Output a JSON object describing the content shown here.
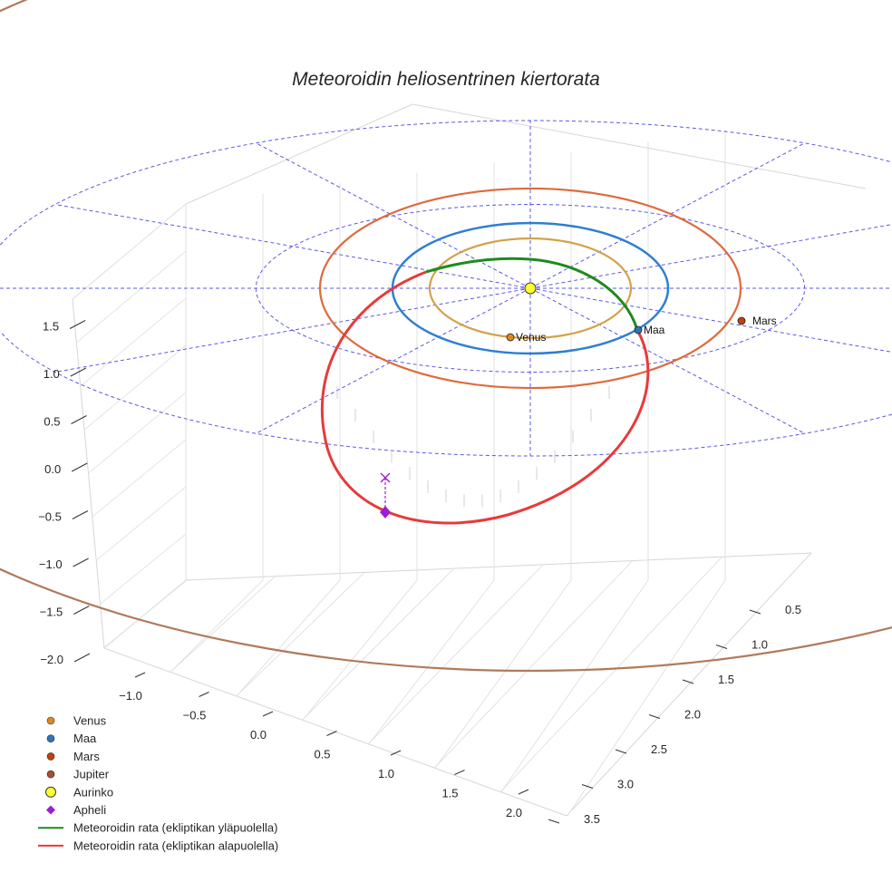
{
  "chart_data": {
    "type": "line",
    "projection": "3d",
    "title": "Meteoroidin heliosentrinen kiertorata",
    "axes": {
      "x": {
        "range": [
          -1.25,
          2.2
        ],
        "ticks": [
          "−1.0",
          "−0.5",
          "0.0",
          "0.5",
          "1.0",
          "1.5",
          "2.0"
        ]
      },
      "y": {
        "range": [
          0.3,
          3.6
        ],
        "ticks": [
          "0.5",
          "1.0",
          "1.5",
          "2.0",
          "2.5",
          "3.0",
          "3.5"
        ]
      },
      "z": {
        "range": [
          -2.0,
          1.7
        ],
        "ticks": [
          "−2.0",
          "−1.5",
          "−1.0",
          "−0.5",
          "0.0",
          "0.5",
          "1.0",
          "1.5"
        ]
      }
    },
    "ecliptic_reference_circles": [
      2,
      4
    ],
    "planets": [
      {
        "name": "Venus",
        "label": "Venus",
        "orbit_radius": 0.72,
        "color": "#d4a24c",
        "marker_color": "#d98a1f"
      },
      {
        "name": "Maa",
        "label": "Maa",
        "orbit_radius": 1.0,
        "color": "#2e7fd1",
        "marker_color": "#2e75b6"
      },
      {
        "name": "Mars",
        "label": "Mars",
        "orbit_radius": 1.52,
        "color": "#de6a3d",
        "marker_color": "#c2410c"
      },
      {
        "name": "Jupiter",
        "orbit_radius": 5.2,
        "color": "#b07a5a",
        "marker_color": "#a0522d"
      }
    ],
    "sun": {
      "name": "Aurinko",
      "color": "#ffff33"
    },
    "meteoroid_orbit": {
      "above_label": "Meteoroidin rata (ekliptikan yläpuolella)",
      "below_label": "Meteoroidin rata (ekliptikan alapuolella)",
      "above_color": "#1e8a1e",
      "below_color": "#e83a3a",
      "perihelion_distance": 1.0,
      "aphelion_distance": 2.5
    },
    "aphelion": {
      "name": "Apheli",
      "color": "#9b1fd1"
    }
  },
  "legend": [
    {
      "label": "Venus",
      "kind": "dot",
      "color": "#d98a1f"
    },
    {
      "label": "Maa",
      "kind": "dot",
      "color": "#2e75b6"
    },
    {
      "label": "Mars",
      "kind": "dot",
      "color": "#c2410c"
    },
    {
      "label": "Jupiter",
      "kind": "dot",
      "color": "#a0522d"
    },
    {
      "label": "Aurinko",
      "kind": "sun",
      "color": "#ffff33"
    },
    {
      "label": "Apheli",
      "kind": "diamond",
      "color": "#9b1fd1"
    },
    {
      "label": "Meteoroidin rata (ekliptikan yläpuolella)",
      "kind": "line",
      "color": "#1e8a1e"
    },
    {
      "label": "Meteoroidin rata (ekliptikan alapuolella)",
      "kind": "line",
      "color": "#e83a3a"
    }
  ]
}
